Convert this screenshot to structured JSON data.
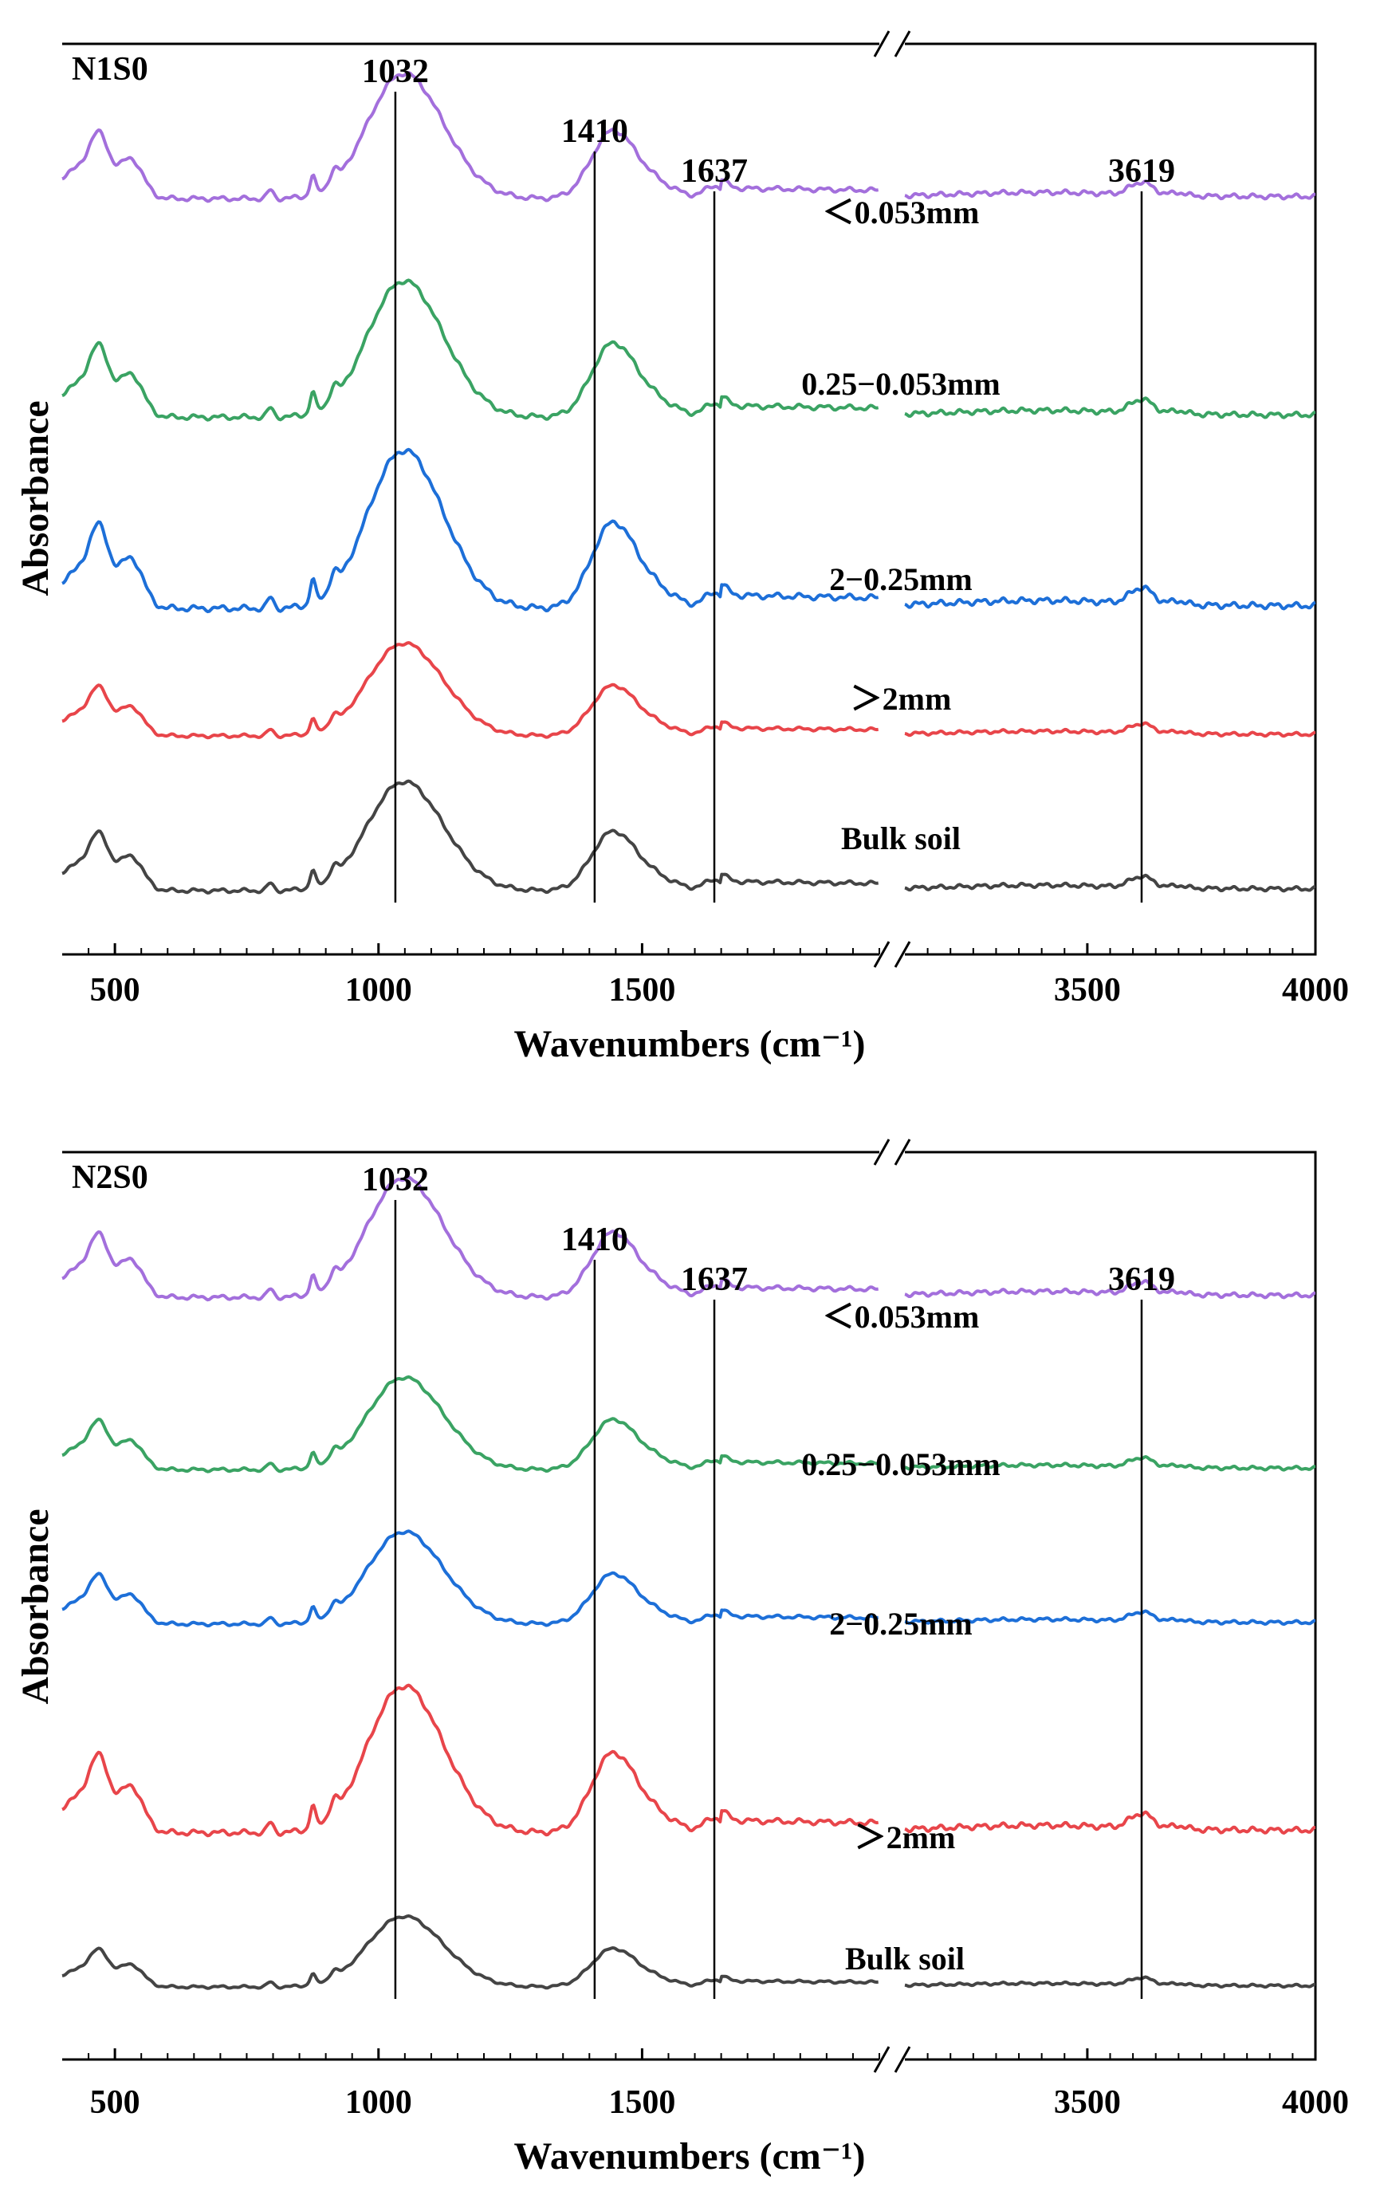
{
  "chart_data": [
    {
      "type": "line",
      "panel_label": "N1S0",
      "xlabel": "Wavenumbers (cm⁻¹)",
      "ylabel": "Absorbance",
      "x_segments": [
        [
          400,
          1950
        ],
        [
          3100,
          4000
        ]
      ],
      "x_break_between": [
        1950,
        3100
      ],
      "x_ticks": [
        500,
        1000,
        1500,
        3500,
        4000
      ],
      "x_tick_labels": [
        "500",
        "1000",
        "1500",
        "3500",
        "4000"
      ],
      "peak_markers": [
        {
          "label": "1032",
          "x": 1032
        },
        {
          "label": "1410",
          "x": 1410
        },
        {
          "label": "1637",
          "x": 1637
        },
        {
          "label": "3619",
          "x": 3619
        }
      ],
      "series": [
        {
          "name": "＜0.053mm",
          "color": "#a36fdc",
          "baseline": 0.83,
          "scale": 0.115
        },
        {
          "name": "0.25−0.053mm",
          "color": "#3aa363",
          "baseline": 0.59,
          "scale": 0.125
        },
        {
          "name": "2−0.25mm",
          "color": "#1d6fd8",
          "baseline": 0.38,
          "scale": 0.145
        },
        {
          "name": "＞2mm",
          "color": "#e8454a",
          "baseline": 0.24,
          "scale": 0.085
        },
        {
          "name": "Bulk soil",
          "color": "#444444",
          "baseline": 0.07,
          "scale": 0.1
        }
      ]
    },
    {
      "type": "line",
      "panel_label": "N2S0",
      "xlabel": "Wavenumbers (cm⁻¹)",
      "ylabel": "Absorbance",
      "x_segments": [
        [
          400,
          1950
        ],
        [
          3100,
          4000
        ]
      ],
      "x_break_between": [
        1950,
        3100
      ],
      "x_ticks": [
        500,
        1000,
        1500,
        3500,
        4000
      ],
      "x_tick_labels": [
        "500",
        "1000",
        "1500",
        "3500",
        "4000"
      ],
      "peak_markers": [
        {
          "label": "1032",
          "x": 1032
        },
        {
          "label": "1410",
          "x": 1410
        },
        {
          "label": "1637",
          "x": 1637
        },
        {
          "label": "3619",
          "x": 3619
        }
      ],
      "series": [
        {
          "name": "＜0.053mm",
          "color": "#a36fdc",
          "baseline": 0.84,
          "scale": 0.11
        },
        {
          "name": "0.25−0.053mm",
          "color": "#3aa363",
          "baseline": 0.65,
          "scale": 0.085
        },
        {
          "name": "2−0.25mm",
          "color": "#1d6fd8",
          "baseline": 0.48,
          "scale": 0.085
        },
        {
          "name": "＞2mm",
          "color": "#e8454a",
          "baseline": 0.25,
          "scale": 0.135
        },
        {
          "name": "Bulk soil",
          "color": "#444444",
          "baseline": 0.08,
          "scale": 0.065
        }
      ]
    }
  ]
}
